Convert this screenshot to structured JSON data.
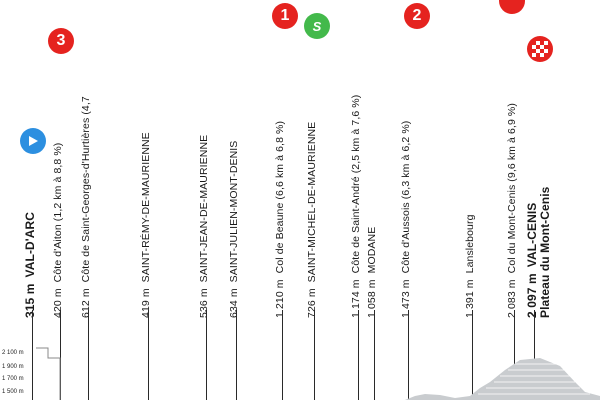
{
  "points": [
    {
      "alt": "315 m",
      "name": "VAL-D'ARC",
      "marker": "start"
    },
    {
      "alt": "420 m",
      "name": "Côte d'Aiton (1,2 km à 8,8 %)",
      "marker": "3"
    },
    {
      "alt": "612 m",
      "name": "Côte de Saint-Georges-d'Hurtières (4,7"
    },
    {
      "alt": "419 m",
      "name": "SAINT-RÉMY-DE-MAURIENNE"
    },
    {
      "alt": "536 m",
      "name": "SAINT-JEAN-DE-MAURIENNE"
    },
    {
      "alt": "634 m",
      "name": "SAINT-JULIEN-MONT-DENIS"
    },
    {
      "alt": "1 210 m",
      "name": "Col de Beaune (6,6 km à 6,8 %)",
      "marker": "1"
    },
    {
      "alt": "726 m",
      "name": "SAINT-MICHEL-DE-MAURIENNE",
      "marker": "S"
    },
    {
      "alt": "1 174 m",
      "name": "Côte de Saint-André (2,5 km à 7,6 %)"
    },
    {
      "alt": "1 058 m",
      "name": "MODANE"
    },
    {
      "alt": "1 473 m",
      "name": "Côte d'Aussois (6,3 km à 6,2 %)",
      "marker": "2"
    },
    {
      "alt": "1 391 m",
      "name": "Lanslebourg"
    },
    {
      "alt": "2 083 m",
      "name": "Col du Mont-Cenis (9,6 km à 6,9 %)"
    },
    {
      "alt": "2 097 m",
      "name": "VAL-CENIS",
      "sub": "Plateau du Mont-Cenis",
      "marker": "finish"
    }
  ],
  "y_axis_labels": [
    "2 100 m",
    "1 900 m",
    "1 700 m",
    "1 500 m"
  ],
  "colors": {
    "climb_red": "#e5231f",
    "sprint_green": "#43b94b",
    "start_blue": "#2c8fe0",
    "text": "#1a1a1a"
  }
}
